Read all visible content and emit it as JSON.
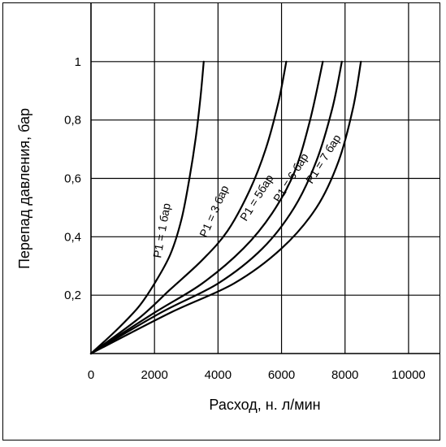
{
  "chart_data": {
    "type": "line",
    "title": "",
    "xlabel": "Расход, н. л/мин",
    "ylabel": "Перепад давления, бар",
    "xlim": [
      0,
      11000
    ],
    "ylim": [
      0,
      1.2
    ],
    "grid": true,
    "x_ticks": [
      "0",
      "2000",
      "4000",
      "6000",
      "8000",
      "10000"
    ],
    "y_ticks": [
      "0,2",
      "0,4",
      "0,6",
      "0,8",
      "1"
    ],
    "series": [
      {
        "name": "P1 = 1 бар",
        "label": "P1 = 1 бар",
        "x": [
          0,
          800,
          1500,
          2000,
          2500,
          2850,
          3100,
          3300,
          3450,
          3550
        ],
        "y": [
          0,
          0.08,
          0.16,
          0.24,
          0.34,
          0.46,
          0.6,
          0.74,
          0.88,
          1.0
        ]
      },
      {
        "name": "P1 = 3 бар",
        "label": "P1 = 3 бар",
        "x": [
          0,
          1500,
          2500,
          3500,
          4300,
          5000,
          5500,
          5900,
          6150
        ],
        "y": [
          0,
          0.12,
          0.22,
          0.32,
          0.42,
          0.56,
          0.7,
          0.86,
          1.0
        ]
      },
      {
        "name": "P1 = 5 бар",
        "label": "P1 = 5бар",
        "x": [
          0,
          2000,
          3500,
          4800,
          5700,
          6400,
          6900,
          7300
        ],
        "y": [
          0,
          0.14,
          0.24,
          0.36,
          0.48,
          0.62,
          0.8,
          1.0
        ]
      },
      {
        "name": "P1 = 6 бар",
        "label": "P1 = 6 бар",
        "x": [
          0,
          2200,
          4000,
          5400,
          6400,
          7100,
          7600,
          7900
        ],
        "y": [
          0,
          0.14,
          0.24,
          0.36,
          0.5,
          0.66,
          0.84,
          1.0
        ]
      },
      {
        "name": "P1 = 7 бар",
        "label": "P1 = 7 бар",
        "x": [
          0,
          2500,
          4500,
          6000,
          7100,
          7800,
          8250,
          8500
        ],
        "y": [
          0,
          0.14,
          0.24,
          0.36,
          0.5,
          0.66,
          0.84,
          1.0
        ]
      }
    ]
  }
}
